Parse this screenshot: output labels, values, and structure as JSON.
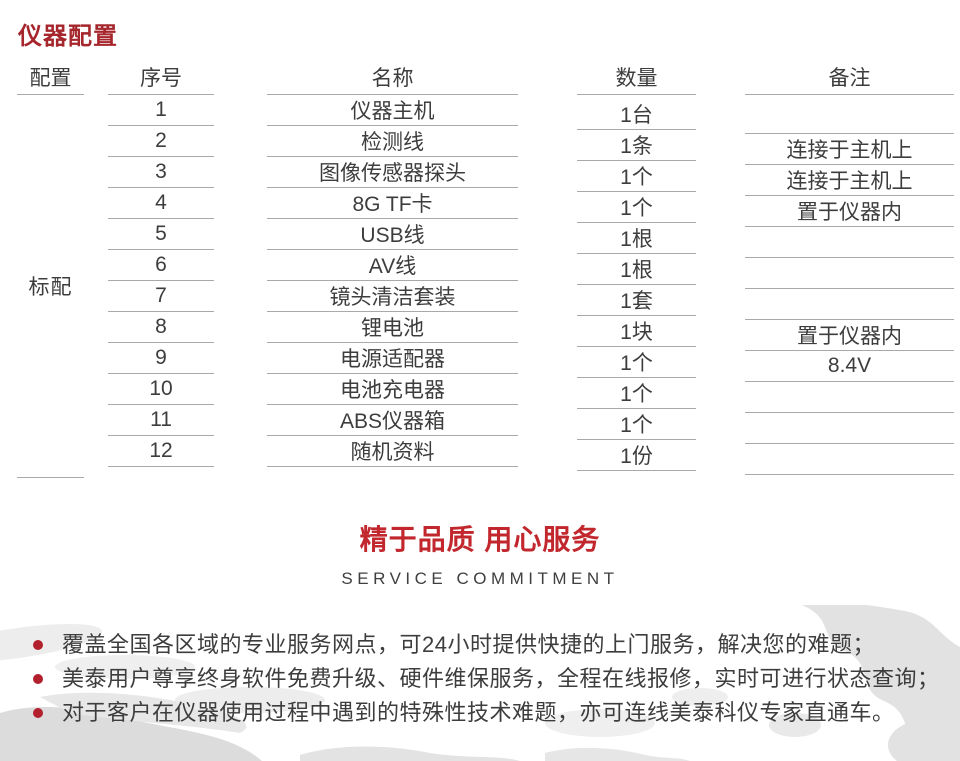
{
  "title": "仪器配置",
  "table": {
    "headers": {
      "config": "配置",
      "serial": "序号",
      "name": "名称",
      "qty": "数量",
      "remark": "备注"
    },
    "config_label": "标配",
    "rows": [
      {
        "serial": "1",
        "name": "仪器主机",
        "qty": "1台",
        "remark": ""
      },
      {
        "serial": "2",
        "name": "检测线",
        "qty": "1条",
        "remark": "连接于主机上"
      },
      {
        "serial": "3",
        "name": "图像传感器探头",
        "qty": "1个",
        "remark": "连接于主机上"
      },
      {
        "serial": "4",
        "name": "8G TF卡",
        "qty": "1个",
        "remark": "置于仪器内"
      },
      {
        "serial": "5",
        "name": "USB线",
        "qty": "1根",
        "remark": ""
      },
      {
        "serial": "6",
        "name": "AV线",
        "qty": "1根",
        "remark": ""
      },
      {
        "serial": "7",
        "name": "镜头清洁套装",
        "qty": "1套",
        "remark": ""
      },
      {
        "serial": "8",
        "name": "锂电池",
        "qty": "1块",
        "remark": "置于仪器内"
      },
      {
        "serial": "9",
        "name": "电源适配器",
        "qty": "1个",
        "remark": "8.4V"
      },
      {
        "serial": "10",
        "name": "电池充电器",
        "qty": "1个",
        "remark": ""
      },
      {
        "serial": "11",
        "name": "ABS仪器箱",
        "qty": "1个",
        "remark": ""
      },
      {
        "serial": "12",
        "name": "随机资料",
        "qty": "1份",
        "remark": ""
      }
    ]
  },
  "service": {
    "heading_cn": "精于品质 用心服务",
    "heading_en": "SERVICE COMMITMENT"
  },
  "footer": {
    "bullets": [
      "覆盖全国各区域的专业服务网点，可24小时提供快捷的上门服务，解决您的难题；",
      "美泰用户尊享终身软件免费升级、硬件维保服务，全程在线报修，实时可进行状态查询；",
      "对于客户在仪器使用过程中遇到的特殊性技术难题，亦可连线美泰科仪专家直通车。"
    ]
  },
  "colors": {
    "title_red": "#a5262c",
    "heading_red": "#c2272e",
    "bullet_red": "#b2202e",
    "text_dark": "#3d3d3d",
    "line_gray": "#a9a9a9",
    "map_gray": "#e2e2e2"
  }
}
